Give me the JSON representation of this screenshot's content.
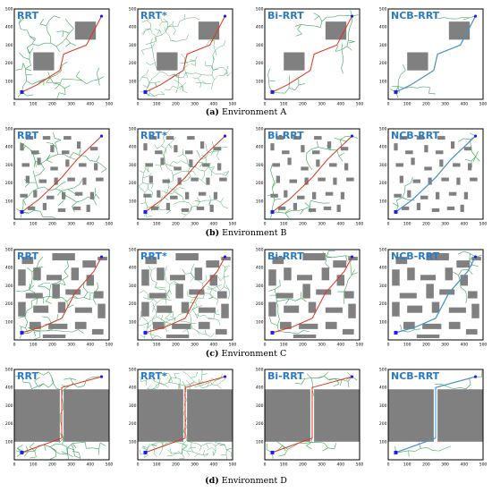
{
  "figure": {
    "axis_ticks": [
      "0",
      "100",
      "200",
      "300",
      "400",
      "500"
    ],
    "colors": {
      "obstacle": "#808080",
      "tree": "#3aa655",
      "path": "#e0321e",
      "smooth_path": "#3a9bd9",
      "start": "#1a1aff",
      "goal": "#1a1aff",
      "title": "#2b7bc4"
    },
    "rows": [
      {
        "caption_label": "(a)",
        "caption_text": "Environment A",
        "panels": [
          {
            "title": "RRT",
            "algo": "rrt"
          },
          {
            "title": "RRT*",
            "algo": "rrtstar"
          },
          {
            "title": "Bi-RRT",
            "algo": "birrt"
          },
          {
            "title": "NCB-RRT",
            "algo": "ncb"
          }
        ]
      },
      {
        "caption_label": "(b)",
        "caption_text": "Environment B",
        "panels": [
          {
            "title": "RRT",
            "algo": "rrt"
          },
          {
            "title": "RRT*",
            "algo": "rrtstar"
          },
          {
            "title": "Bi-RRT",
            "algo": "birrt"
          },
          {
            "title": "NCB-RRT",
            "algo": "ncb"
          }
        ]
      },
      {
        "caption_label": "(c)",
        "caption_text": "Environment C",
        "panels": [
          {
            "title": "RRT",
            "algo": "rrt"
          },
          {
            "title": "RRT*",
            "algo": "rrtstar"
          },
          {
            "title": "Bi-RRT",
            "algo": "birrt"
          },
          {
            "title": "NCB-RRT",
            "algo": "ncb"
          }
        ]
      },
      {
        "caption_label": "(d)",
        "caption_text": "Environment D",
        "panels": [
          {
            "title": "RRT",
            "algo": "rrt"
          },
          {
            "title": "RRT*",
            "algo": "rrtstar"
          },
          {
            "title": "Bi-RRT",
            "algo": "birrt"
          },
          {
            "title": "NCB-RRT",
            "algo": "ncb"
          }
        ]
      }
    ]
  }
}
